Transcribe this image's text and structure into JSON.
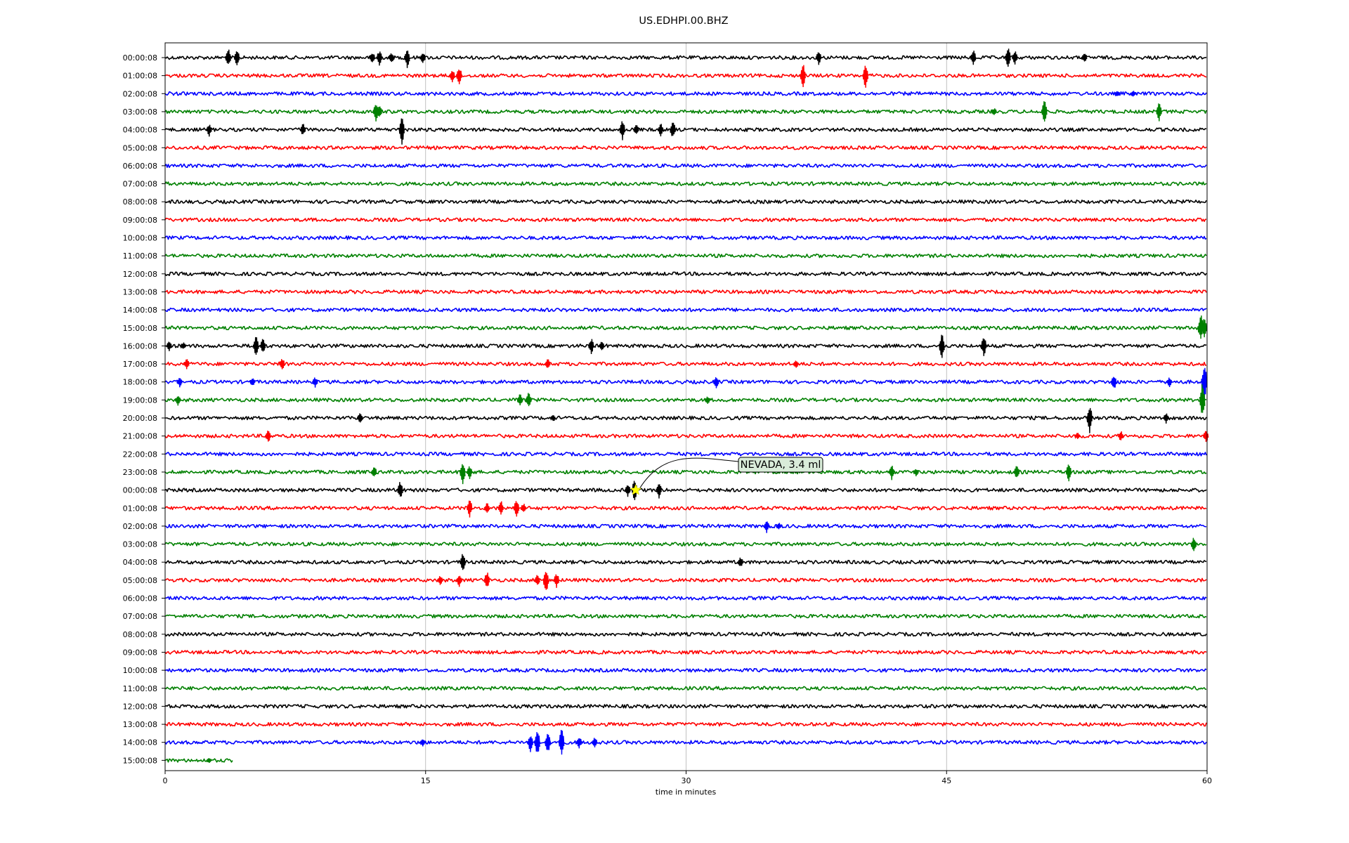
{
  "chart_data": {
    "type": "line",
    "title": "US.EDHPI.00.BHZ",
    "xlabel": "time in minutes",
    "ylabel": "",
    "xlim": [
      0,
      60
    ],
    "x_ticks": [
      "0",
      "15",
      "30",
      "45",
      "60"
    ],
    "x_tick_values": [
      0,
      15,
      30,
      45,
      60
    ],
    "grid": "vertical",
    "series_colors": [
      "#000000",
      "#ff0000",
      "#0000ff",
      "#008000"
    ],
    "rows": [
      {
        "label": "00:00:08",
        "end_minute": 60,
        "events": [
          [
            3.6,
            14
          ],
          [
            4.1,
            13
          ],
          [
            11.9,
            9
          ],
          [
            12.3,
            12
          ],
          [
            13.0,
            8
          ],
          [
            13.9,
            16
          ],
          [
            14.8,
            10
          ],
          [
            37.6,
            11
          ],
          [
            46.5,
            12
          ],
          [
            48.5,
            16
          ],
          [
            48.9,
            11
          ],
          [
            52.9,
            8
          ]
        ]
      },
      {
        "label": "01:00:08",
        "end_minute": 60,
        "events": [
          [
            16.5,
            10
          ],
          [
            16.9,
            14
          ],
          [
            36.7,
            18
          ],
          [
            40.3,
            20
          ]
        ]
      },
      {
        "label": "02:00:08",
        "end_minute": 60,
        "events": [
          [
            54.8,
            5
          ],
          [
            55.7,
            5
          ]
        ]
      },
      {
        "label": "03:00:08",
        "end_minute": 60,
        "events": [
          [
            12.1,
            14
          ],
          [
            12.3,
            10
          ],
          [
            47.7,
            6
          ],
          [
            50.6,
            20
          ],
          [
            57.2,
            14
          ]
        ]
      },
      {
        "label": "04:00:08",
        "end_minute": 60,
        "events": [
          [
            2.5,
            10
          ],
          [
            7.9,
            10
          ],
          [
            13.6,
            22
          ],
          [
            26.3,
            16
          ],
          [
            27.1,
            9
          ],
          [
            28.5,
            10
          ],
          [
            29.2,
            14
          ]
        ]
      },
      {
        "label": "05:00:08",
        "end_minute": 60,
        "events": []
      },
      {
        "label": "06:00:08",
        "end_minute": 60,
        "events": []
      },
      {
        "label": "07:00:08",
        "end_minute": 60,
        "events": []
      },
      {
        "label": "08:00:08",
        "end_minute": 60,
        "events": []
      },
      {
        "label": "09:00:08",
        "end_minute": 60,
        "events": []
      },
      {
        "label": "10:00:08",
        "end_minute": 60,
        "events": []
      },
      {
        "label": "11:00:08",
        "end_minute": 60,
        "events": []
      },
      {
        "label": "12:00:08",
        "end_minute": 60,
        "events": []
      },
      {
        "label": "13:00:08",
        "end_minute": 60,
        "events": []
      },
      {
        "label": "14:00:08",
        "end_minute": 60,
        "events": []
      },
      {
        "label": "15:00:08",
        "end_minute": 60,
        "events": [
          [
            59.6,
            22
          ],
          [
            59.8,
            18
          ]
        ]
      },
      {
        "label": "16:00:08",
        "end_minute": 60,
        "events": [
          [
            0.2,
            8
          ],
          [
            1.0,
            6
          ],
          [
            5.2,
            16
          ],
          [
            5.6,
            12
          ],
          [
            24.5,
            12
          ],
          [
            25.1,
            8
          ],
          [
            44.7,
            20
          ],
          [
            47.1,
            16
          ]
        ]
      },
      {
        "label": "17:00:08",
        "end_minute": 60,
        "events": [
          [
            1.2,
            8
          ],
          [
            6.7,
            10
          ],
          [
            22.0,
            8
          ],
          [
            36.3,
            6
          ]
        ]
      },
      {
        "label": "18:00:08",
        "end_minute": 60,
        "events": [
          [
            0.8,
            8
          ],
          [
            5.0,
            6
          ],
          [
            8.6,
            8
          ],
          [
            31.7,
            10
          ],
          [
            54.6,
            12
          ],
          [
            57.8,
            8
          ],
          [
            59.8,
            30
          ]
        ]
      },
      {
        "label": "19:00:08",
        "end_minute": 60,
        "events": [
          [
            0.7,
            8
          ],
          [
            20.4,
            10
          ],
          [
            20.9,
            12
          ],
          [
            31.2,
            6
          ],
          [
            59.7,
            28
          ]
        ]
      },
      {
        "label": "20:00:08",
        "end_minute": 60,
        "events": [
          [
            11.2,
            8
          ],
          [
            22.3,
            6
          ],
          [
            53.2,
            22
          ],
          [
            57.6,
            8
          ]
        ]
      },
      {
        "label": "21:00:08",
        "end_minute": 60,
        "events": [
          [
            5.9,
            10
          ],
          [
            52.5,
            6
          ],
          [
            55.0,
            8
          ],
          [
            59.9,
            10
          ]
        ]
      },
      {
        "label": "22:00:08",
        "end_minute": 60,
        "events": []
      },
      {
        "label": "23:00:08",
        "end_minute": 60,
        "events": [
          [
            12.0,
            10
          ],
          [
            17.1,
            18
          ],
          [
            17.5,
            10
          ],
          [
            41.8,
            12
          ],
          [
            43.2,
            6
          ],
          [
            49.0,
            10
          ],
          [
            52.0,
            14
          ]
        ]
      },
      {
        "label": "00:00:08",
        "end_minute": 60,
        "events": [
          [
            13.5,
            14
          ],
          [
            26.6,
            10
          ],
          [
            27.0,
            18
          ],
          [
            28.4,
            12
          ]
        ]
      },
      {
        "label": "01:00:08",
        "end_minute": 60,
        "events": [
          [
            17.5,
            14
          ],
          [
            18.5,
            8
          ],
          [
            19.3,
            12
          ],
          [
            20.2,
            14
          ],
          [
            20.6,
            8
          ]
        ]
      },
      {
        "label": "02:00:08",
        "end_minute": 60,
        "events": [
          [
            34.6,
            10
          ],
          [
            35.3,
            6
          ]
        ]
      },
      {
        "label": "03:00:08",
        "end_minute": 60,
        "events": [
          [
            59.2,
            12
          ]
        ]
      },
      {
        "label": "04:00:08",
        "end_minute": 60,
        "events": [
          [
            17.1,
            14
          ],
          [
            33.1,
            8
          ]
        ]
      },
      {
        "label": "05:00:08",
        "end_minute": 60,
        "events": [
          [
            15.8,
            8
          ],
          [
            16.9,
            10
          ],
          [
            18.5,
            14
          ],
          [
            21.4,
            10
          ],
          [
            21.9,
            20
          ],
          [
            22.5,
            12
          ]
        ]
      },
      {
        "label": "06:00:08",
        "end_minute": 60,
        "events": []
      },
      {
        "label": "07:00:08",
        "end_minute": 60,
        "events": []
      },
      {
        "label": "08:00:08",
        "end_minute": 60,
        "events": []
      },
      {
        "label": "09:00:08",
        "end_minute": 60,
        "events": []
      },
      {
        "label": "10:00:08",
        "end_minute": 60,
        "events": []
      },
      {
        "label": "11:00:08",
        "end_minute": 60,
        "events": []
      },
      {
        "label": "12:00:08",
        "end_minute": 60,
        "events": []
      },
      {
        "label": "13:00:08",
        "end_minute": 60,
        "events": []
      },
      {
        "label": "14:00:08",
        "end_minute": 60,
        "events": [
          [
            14.8,
            6
          ],
          [
            21.0,
            14
          ],
          [
            21.4,
            20
          ],
          [
            22.0,
            18
          ],
          [
            22.8,
            22
          ],
          [
            23.8,
            10
          ],
          [
            24.7,
            8
          ]
        ]
      },
      {
        "label": "15:00:08",
        "end_minute": 3.9,
        "events": [
          [
            2.5,
            4
          ]
        ]
      }
    ],
    "annotation": {
      "text": "NEVADA, 3.4 ml",
      "row_index": 24,
      "minute": 27.1,
      "marker": "star",
      "marker_color": "#ffff00"
    }
  }
}
